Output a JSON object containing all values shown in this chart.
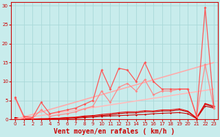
{
  "xlabel": "Vent moyen/en rafales ( km/h )",
  "xlim": [
    -0.5,
    23.5
  ],
  "ylim": [
    0,
    31
  ],
  "xticks": [
    0,
    1,
    2,
    3,
    4,
    5,
    6,
    7,
    8,
    9,
    10,
    11,
    12,
    13,
    14,
    15,
    16,
    17,
    18,
    19,
    20,
    21,
    22,
    23
  ],
  "yticks": [
    0,
    5,
    10,
    15,
    20,
    25,
    30
  ],
  "background_color": "#c8ecec",
  "grid_color": "#a8d8d8",
  "lines": [
    {
      "x": [
        0,
        1,
        2,
        3,
        4,
        5,
        6,
        7,
        8,
        9,
        10,
        11,
        12,
        13,
        14,
        15,
        16,
        17,
        18,
        19,
        20,
        21,
        22,
        23
      ],
      "y": [
        0.3,
        0.1,
        0.1,
        0.1,
        0.1,
        0.2,
        0.2,
        0.3,
        0.5,
        0.6,
        0.8,
        0.9,
        1.0,
        1.1,
        1.2,
        1.3,
        1.5,
        1.6,
        1.7,
        1.8,
        1.5,
        0.2,
        3.5,
        3.0
      ],
      "color": "#cc0000",
      "lw": 0.8,
      "marker": "D",
      "ms": 1.5
    },
    {
      "x": [
        0,
        1,
        2,
        3,
        4,
        5,
        6,
        7,
        8,
        9,
        10,
        11,
        12,
        13,
        14,
        15,
        16,
        17,
        18,
        19,
        20,
        21,
        22,
        23
      ],
      "y": [
        0.4,
        0.1,
        0.1,
        0.1,
        0.2,
        0.3,
        0.4,
        0.5,
        0.7,
        0.9,
        1.0,
        1.2,
        1.5,
        1.7,
        1.7,
        2.0,
        2.0,
        2.2,
        2.2,
        2.5,
        2.0,
        0.3,
        4.0,
        3.2
      ],
      "color": "#bb0000",
      "lw": 0.8,
      "marker": "s",
      "ms": 1.5
    },
    {
      "x": [
        0,
        1,
        2,
        3,
        4,
        5,
        6,
        7,
        8,
        9,
        10,
        11,
        12,
        13,
        14,
        15,
        16,
        17,
        18,
        19,
        20,
        21,
        22,
        23
      ],
      "y": [
        0.5,
        0.1,
        0.1,
        0.2,
        0.2,
        0.3,
        0.5,
        0.6,
        0.9,
        1.0,
        1.3,
        1.5,
        1.8,
        2.0,
        2.0,
        2.3,
        2.2,
        2.5,
        2.5,
        2.8,
        2.2,
        0.4,
        4.2,
        3.5
      ],
      "color": "#ee0000",
      "lw": 0.8,
      "marker": "^",
      "ms": 1.5
    },
    {
      "x": [
        0,
        23
      ],
      "y": [
        0.0,
        15.0
      ],
      "color": "#ffaaaa",
      "lw": 1.2,
      "marker": null,
      "ms": 0
    },
    {
      "x": [
        0,
        23
      ],
      "y": [
        0.0,
        8.0
      ],
      "color": "#ffbbbb",
      "lw": 1.2,
      "marker": null,
      "ms": 0
    },
    {
      "x": [
        0,
        1,
        2,
        3,
        4,
        5,
        6,
        7,
        8,
        9,
        10,
        11,
        12,
        13,
        14,
        15,
        16,
        17,
        18,
        19,
        20,
        21,
        22,
        23
      ],
      "y": [
        5.5,
        0.5,
        0.3,
        2.5,
        0.8,
        1.2,
        1.5,
        2.0,
        2.8,
        3.5,
        7.5,
        4.5,
        8.5,
        9.5,
        7.5,
        10.5,
        6.5,
        7.5,
        7.5,
        8.0,
        8.0,
        0.7,
        14.5,
        3.0
      ],
      "color": "#ff8888",
      "lw": 0.9,
      "marker": "D",
      "ms": 2.0
    },
    {
      "x": [
        0,
        1,
        2,
        3,
        4,
        5,
        6,
        7,
        8,
        9,
        10,
        11,
        12,
        13,
        14,
        15,
        16,
        17,
        18,
        19,
        20,
        21,
        22,
        23
      ],
      "y": [
        5.8,
        0.8,
        0.5,
        4.5,
        1.5,
        2.0,
        2.5,
        3.0,
        4.0,
        5.0,
        13.0,
        8.0,
        13.5,
        13.0,
        10.0,
        15.0,
        10.0,
        8.0,
        8.0,
        8.0,
        8.0,
        1.0,
        29.5,
        3.5
      ],
      "color": "#ff5555",
      "lw": 0.9,
      "marker": "D",
      "ms": 2.0
    }
  ],
  "axis_color": "#cc0000",
  "tick_color": "#cc0000",
  "label_color": "#cc0000",
  "xlabel_fontsize": 7,
  "tick_fontsize": 5
}
